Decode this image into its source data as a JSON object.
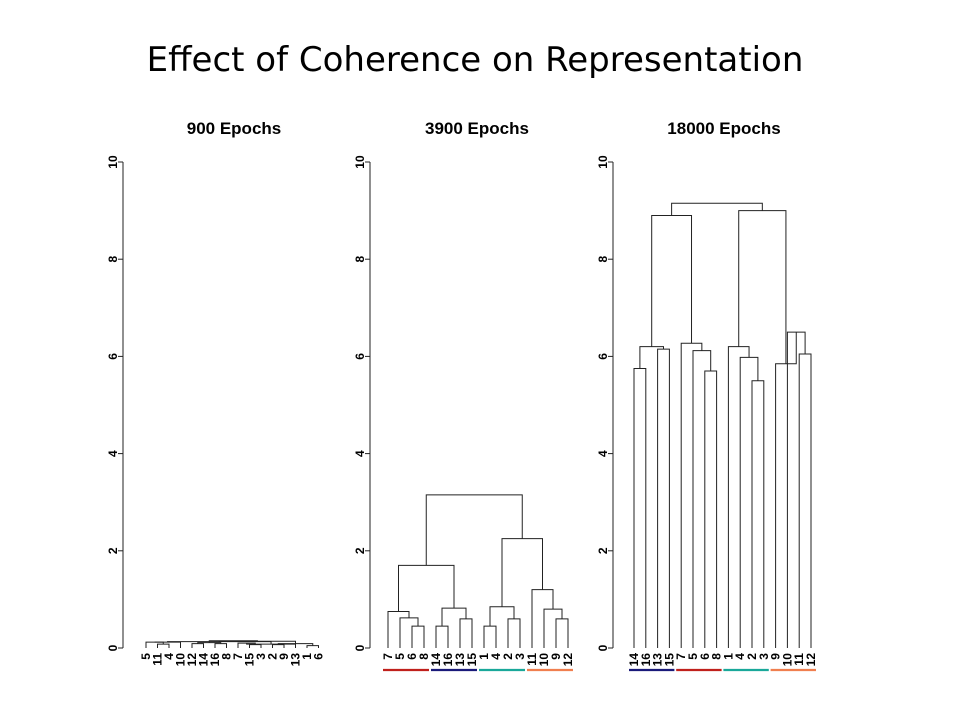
{
  "slide": {
    "title": "Effect of Coherence on Representation"
  },
  "colors": {
    "line": "#222222",
    "red": "#c0201c",
    "navy": "#1a1a7a",
    "teal": "#1aa89a",
    "orange": "#f07f4f"
  },
  "chart_data": [
    {
      "type": "dendrogram",
      "title": "900 Epochs",
      "ylim": [
        0,
        10
      ],
      "yticks": [
        0,
        2,
        4,
        6,
        8,
        10
      ],
      "leaves": [
        "5",
        "11",
        "4",
        "10",
        "12",
        "14",
        "16",
        "8",
        "7",
        "15",
        "3",
        "2",
        "9",
        "13",
        "1",
        "6"
      ],
      "merges": [
        {
          "a": 4,
          "b": 5,
          "h": 0.09
        },
        {
          "a": 6,
          "b": 7,
          "h": 0.09
        },
        {
          "a": 9,
          "b": 10,
          "h": 0.07
        },
        {
          "a": 11,
          "b": 12,
          "h": 0.07
        },
        {
          "a": 14,
          "b": 15,
          "h": 0.05
        },
        {
          "a": 1,
          "b": 2,
          "h": 0.08
        },
        {
          "a": 16,
          "b": 17,
          "h": 0.11
        },
        {
          "a": 19,
          "b": 20,
          "h": 0.09
        },
        {
          "a": 0,
          "b": 21,
          "h": 0.12
        },
        {
          "a": 3,
          "b": 24,
          "h": 0.12
        },
        {
          "a": 8,
          "b": 18,
          "h": 0.1
        },
        {
          "a": 26,
          "b": 13,
          "h": 0.08
        },
        {
          "a": 25,
          "b": 27,
          "h": 0.13
        },
        {
          "a": 28,
          "b": 23,
          "h": 0.14
        },
        {
          "a": 29,
          "b": 22,
          "h": 0.15
        }
      ],
      "groups": []
    },
    {
      "type": "dendrogram",
      "title": "3900 Epochs",
      "ylim": [
        0,
        10
      ],
      "yticks": [
        0,
        2,
        4,
        6,
        8,
        10
      ],
      "leaves": [
        "7",
        "5",
        "6",
        "8",
        "14",
        "16",
        "13",
        "15",
        "1",
        "4",
        "2",
        "3",
        "11",
        "10",
        "9",
        "12"
      ],
      "merges": [
        {
          "a": 2,
          "b": 3,
          "h": 0.45
        },
        {
          "a": 1,
          "b": 16,
          "h": 0.62
        },
        {
          "a": 0,
          "b": 17,
          "h": 0.75
        },
        {
          "a": 4,
          "b": 5,
          "h": 0.45
        },
        {
          "a": 6,
          "b": 7,
          "h": 0.6
        },
        {
          "a": 19,
          "b": 20,
          "h": 0.82
        },
        {
          "a": 18,
          "b": 21,
          "h": 1.7
        },
        {
          "a": 8,
          "b": 9,
          "h": 0.45
        },
        {
          "a": 10,
          "b": 11,
          "h": 0.6
        },
        {
          "a": 23,
          "b": 24,
          "h": 0.85
        },
        {
          "a": 14,
          "b": 15,
          "h": 0.6
        },
        {
          "a": 13,
          "b": 26,
          "h": 0.8
        },
        {
          "a": 12,
          "b": 27,
          "h": 1.2
        },
        {
          "a": 25,
          "b": 28,
          "h": 2.25
        },
        {
          "a": 22,
          "b": 29,
          "h": 3.15
        }
      ],
      "groups": [
        {
          "from": 0,
          "to": 3,
          "color": "red"
        },
        {
          "from": 4,
          "to": 7,
          "color": "navy"
        },
        {
          "from": 8,
          "to": 11,
          "color": "teal"
        },
        {
          "from": 12,
          "to": 15,
          "color": "orange"
        }
      ]
    },
    {
      "type": "dendrogram",
      "title": "18000 Epochs",
      "ylim": [
        0,
        10
      ],
      "yticks": [
        0,
        2,
        4,
        6,
        8,
        10
      ],
      "leaves": [
        "14",
        "16",
        "13",
        "15",
        "7",
        "5",
        "6",
        "8",
        "1",
        "4",
        "2",
        "3",
        "9",
        "10",
        "11",
        "12"
      ],
      "merges": [
        {
          "a": 0,
          "b": 1,
          "h": 5.75
        },
        {
          "a": 2,
          "b": 3,
          "h": 6.15
        },
        {
          "a": 16,
          "b": 17,
          "h": 6.2
        },
        {
          "a": 6,
          "b": 7,
          "h": 5.7
        },
        {
          "a": 5,
          "b": 19,
          "h": 6.12
        },
        {
          "a": 4,
          "b": 20,
          "h": 6.27
        },
        {
          "a": 18,
          "b": 21,
          "h": 8.9
        },
        {
          "a": 10,
          "b": 11,
          "h": 5.5
        },
        {
          "a": 9,
          "b": 23,
          "h": 5.98
        },
        {
          "a": 8,
          "b": 24,
          "h": 6.2
        },
        {
          "a": 14,
          "b": 15,
          "h": 6.05
        },
        {
          "a": 13,
          "b": 26,
          "h": 6.5
        },
        {
          "a": 12,
          "b": 27,
          "h": 5.85
        },
        {
          "a": 25,
          "b": 28,
          "h": 9.0
        },
        {
          "a": 22,
          "b": 29,
          "h": 9.15
        }
      ],
      "groups": [
        {
          "from": 0,
          "to": 3,
          "color": "navy"
        },
        {
          "from": 4,
          "to": 7,
          "color": "red"
        },
        {
          "from": 8,
          "to": 11,
          "color": "teal"
        },
        {
          "from": 12,
          "to": 15,
          "color": "orange"
        }
      ]
    }
  ]
}
